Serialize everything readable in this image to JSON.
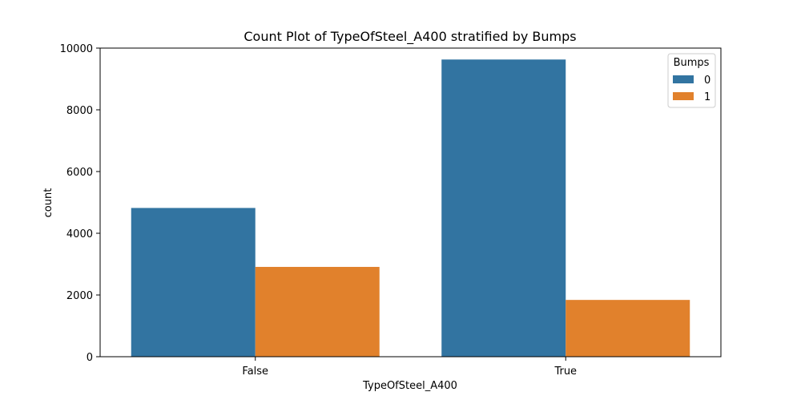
{
  "chart_data": {
    "type": "bar",
    "title": "Count Plot of TypeOfSteel_A400 stratified by Bumps",
    "xlabel": "TypeOfSteel_A400",
    "ylabel": "count",
    "categories": [
      "False",
      "True"
    ],
    "series": [
      {
        "name": "0",
        "color": "#3274a1",
        "values": [
          4820,
          9630
        ]
      },
      {
        "name": "1",
        "color": "#e1812c",
        "values": [
          2910,
          1840
        ]
      }
    ],
    "ylim": [
      0,
      10000
    ],
    "yticks": [
      0,
      2000,
      4000,
      6000,
      8000,
      10000
    ],
    "legend": {
      "title": "Bumps",
      "entries": [
        "0",
        "1"
      ],
      "placement": "top-right"
    },
    "grid": false
  }
}
